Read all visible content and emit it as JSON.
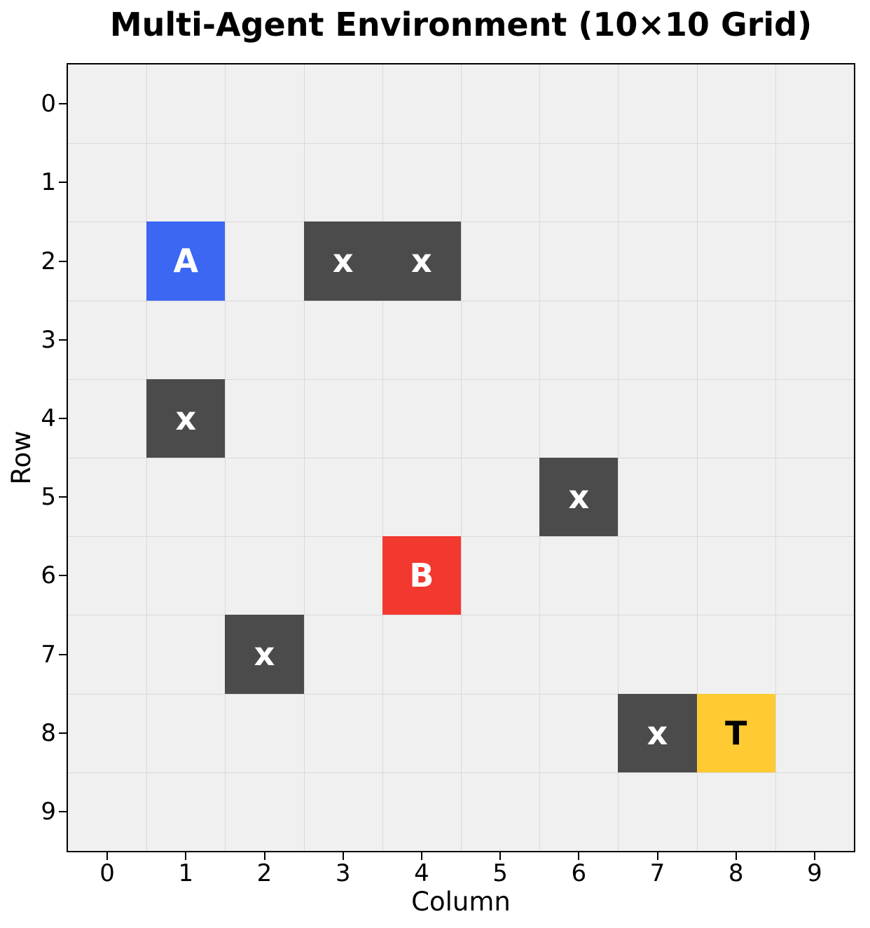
{
  "figure": {
    "title": "Multi-Agent Environment (10×10 Grid)",
    "xlabel": "Column",
    "ylabel": "Row"
  },
  "colors": {
    "agent_a": "#3b67f3",
    "agent_b": "#f2392f",
    "target": "#ffca32",
    "obstacle": "#4b4b4b",
    "plot_background": "#f0f0f0",
    "gridline": "#d9d9d9",
    "spine": "#000000",
    "text": "#000000",
    "label_on_dark": "#ffffff",
    "label_on_target": "#000000"
  },
  "chart_data": {
    "type": "heatmap",
    "title": "Multi-Agent Environment (10×10 Grid)",
    "xlabel": "Column",
    "ylabel": "Row",
    "grid_rows": 10,
    "grid_cols": 10,
    "xticks": [
      "0",
      "1",
      "2",
      "3",
      "4",
      "5",
      "6",
      "7",
      "8",
      "9"
    ],
    "yticks": [
      "0",
      "1",
      "2",
      "3",
      "4",
      "5",
      "6",
      "7",
      "8",
      "9"
    ],
    "grid_on": true,
    "legend": null,
    "cell_types": {
      "agent_a": {
        "color": "#3b67f3",
        "text_color": "#ffffff"
      },
      "agent_b": {
        "color": "#f2392f",
        "text_color": "#ffffff"
      },
      "target": {
        "color": "#ffca32",
        "text_color": "#000000"
      },
      "obstacle": {
        "color": "#4b4b4b",
        "text_color": "#ffffff"
      }
    },
    "cells": [
      {
        "row": 2,
        "col": 1,
        "label": "A",
        "kind": "agent_a"
      },
      {
        "row": 2,
        "col": 3,
        "label": "x",
        "kind": "obstacle"
      },
      {
        "row": 2,
        "col": 4,
        "label": "x",
        "kind": "obstacle"
      },
      {
        "row": 4,
        "col": 1,
        "label": "x",
        "kind": "obstacle"
      },
      {
        "row": 5,
        "col": 6,
        "label": "x",
        "kind": "obstacle"
      },
      {
        "row": 6,
        "col": 4,
        "label": "B",
        "kind": "agent_b"
      },
      {
        "row": 7,
        "col": 2,
        "label": "x",
        "kind": "obstacle"
      },
      {
        "row": 8,
        "col": 7,
        "label": "x",
        "kind": "obstacle"
      },
      {
        "row": 8,
        "col": 8,
        "label": "T",
        "kind": "target"
      }
    ]
  }
}
